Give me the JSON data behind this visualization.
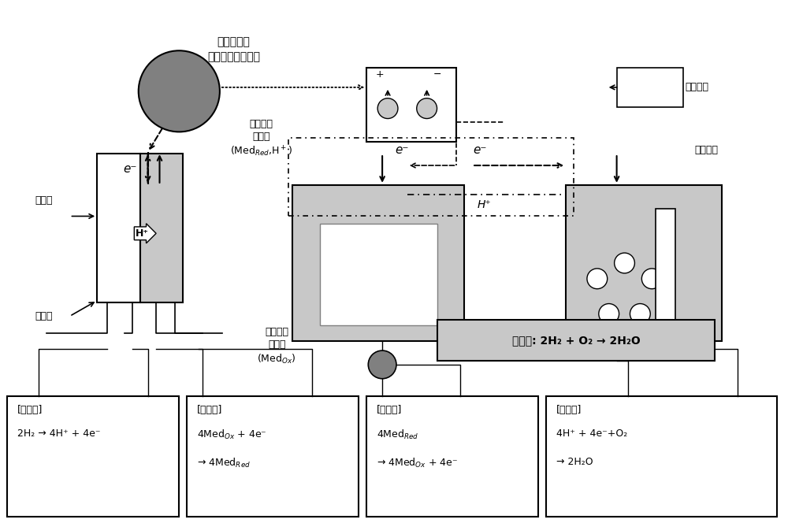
{
  "bg_color": "#ffffff",
  "title": "",
  "fig_width": 10.0,
  "fig_height": 6.64,
  "dpi": 100,
  "top_text": "发电能量的\n一部分和电位参照",
  "liquid_label1": "含有介体\n的液体\n(Med₀ₓ,H⁺)",
  "liquid_label1_note": "(Medᴿₑᵈ,H⁺)",
  "liquid_label2": "含有介体\n的液体\n(Med₀ₓ)",
  "liquid_label2_note": "(Med₀ₓ)",
  "h_in": "氢进入",
  "h_out": "氢排出",
  "e_minus": "e⁻",
  "h_plus": "H⁺",
  "steam_out": "蒸气排出",
  "external_gas": "外部气体",
  "total_reaction_label": "总反应: 2H₂ + O₂ → 2H₂O",
  "box1_title": "[反应式]",
  "box1_eq1": "2H₂ → 4H⁺ + 4e⁻",
  "box2_title": "[反应式]",
  "box2_eq1": "4Med₀ₓ + 4e⁻",
  "box2_eq2": "→ 4Medᴿₑᵈ",
  "box3_title": "[反应式]",
  "box3_eq1": "4Medᴿₑᵈ",
  "box3_eq2": "→ 4Med₀ₓ + 4e⁻",
  "box4_title": "[反应式]",
  "box4_eq1": "4H⁺ + 4e⁻+O₂",
  "box4_eq2": "→ 2H₂O",
  "gray_light": "#c8c8c8",
  "gray_dark": "#808080",
  "gray_box": "#a0a0a0",
  "white": "#ffffff",
  "black": "#000000"
}
